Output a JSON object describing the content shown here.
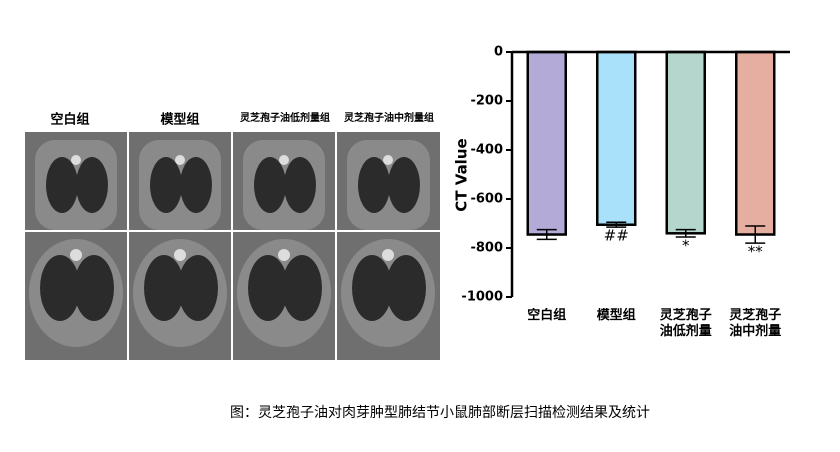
{
  "figure": {
    "panel_labels": [
      "空白组",
      "模型组",
      "灵芝孢子油低剂量组",
      "灵芝孢子油中剂量组"
    ],
    "caption": "图：灵芝孢子油对肉芽肿型肺结节小鼠肺部断层扫描检测结果及统计"
  },
  "chart_data": {
    "type": "bar",
    "y_label": "CT Value",
    "categories": [
      "空白组",
      "模型组",
      "灵芝孢子油低剂量",
      "灵芝孢子油中剂量"
    ],
    "values": [
      -745,
      -705,
      -740,
      -745
    ],
    "errors": [
      20,
      10,
      15,
      35
    ],
    "annotations": [
      null,
      "##",
      "*",
      "**"
    ],
    "colors": [
      "#b4aad8",
      "#a9e1fa",
      "#b5d6cc",
      "#e6ada1"
    ],
    "ylim": [
      -1000,
      0
    ],
    "yticks": [
      0,
      -200,
      -400,
      -600,
      -800,
      -1000
    ]
  }
}
